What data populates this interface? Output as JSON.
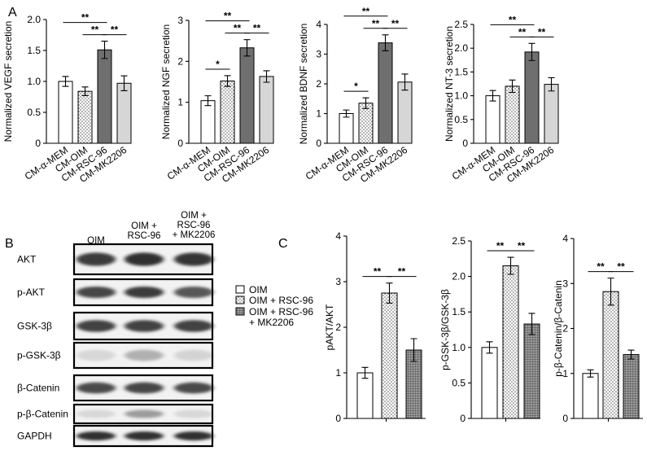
{
  "panel_labels": {
    "a": "A",
    "b": "B",
    "c": "C"
  },
  "chart_data": [
    {
      "id": "vegf",
      "type": "bar",
      "panel": "A",
      "ylabel": "Normalized VEGF secretion",
      "categories": [
        "CM-α-MEM",
        "CM-OIM",
        "CM-RSC-96",
        "CM-MK2206"
      ],
      "values": [
        1.0,
        0.84,
        1.51,
        0.97
      ],
      "errors": [
        0.08,
        0.07,
        0.14,
        0.12
      ],
      "ylim": [
        0,
        2.0
      ],
      "yticks": [
        "0",
        "0.5",
        "1.0",
        "1.5",
        "2.0"
      ],
      "fills": [
        "white",
        "dots",
        "dark",
        "light"
      ],
      "sig": [
        {
          "from": 0,
          "to": 2,
          "label": "**"
        },
        {
          "from": 1,
          "to": 2,
          "label": "**"
        },
        {
          "from": 2,
          "to": 3,
          "label": "**"
        }
      ]
    },
    {
      "id": "ngf",
      "type": "bar",
      "panel": "A",
      "ylabel": "Normalized NGF secretion",
      "categories": [
        "CM-α-MEM",
        "CM-OIM",
        "CM-RSC-96",
        "CM-MK2206"
      ],
      "values": [
        1.04,
        1.52,
        2.33,
        1.63
      ],
      "errors": [
        0.12,
        0.13,
        0.2,
        0.14
      ],
      "ylim": [
        0,
        3
      ],
      "yticks": [
        "0",
        "1",
        "2",
        "3"
      ],
      "fills": [
        "white",
        "dots",
        "dark",
        "light"
      ],
      "sig": [
        {
          "from": 0,
          "to": 1,
          "label": "*"
        },
        {
          "from": 0,
          "to": 2,
          "label": "**"
        },
        {
          "from": 1,
          "to": 2,
          "label": "**"
        },
        {
          "from": 2,
          "to": 3,
          "label": "**"
        }
      ]
    },
    {
      "id": "bdnf",
      "type": "bar",
      "panel": "A",
      "ylabel": "Normalized BDNF secretion",
      "categories": [
        "CM-α-MEM",
        "CM-OIM",
        "CM-RSC-96",
        "CM-MK2206"
      ],
      "values": [
        1.0,
        1.35,
        3.38,
        2.06
      ],
      "errors": [
        0.12,
        0.18,
        0.27,
        0.27
      ],
      "ylim": [
        0,
        4
      ],
      "yticks": [
        "0",
        "1",
        "2",
        "3",
        "4"
      ],
      "fills": [
        "white",
        "dots",
        "dark",
        "light"
      ],
      "sig": [
        {
          "from": 0,
          "to": 1,
          "label": "*"
        },
        {
          "from": 0,
          "to": 2,
          "label": "**"
        },
        {
          "from": 1,
          "to": 2,
          "label": "**"
        },
        {
          "from": 2,
          "to": 3,
          "label": "**"
        }
      ]
    },
    {
      "id": "nt3",
      "type": "bar",
      "panel": "A",
      "ylabel": "Normalized NT-3 secretion",
      "categories": [
        "CM-α-MEM",
        "CM-OIM",
        "CM-RSC-96",
        "CM-MK2206"
      ],
      "values": [
        1.0,
        1.2,
        1.92,
        1.24
      ],
      "errors": [
        0.11,
        0.13,
        0.18,
        0.14
      ],
      "ylim": [
        0,
        2.5
      ],
      "yticks": [
        "0",
        "0.5",
        "1.0",
        "1.5",
        "2.0",
        "2.5"
      ],
      "fills": [
        "white",
        "dots",
        "dark",
        "light"
      ],
      "sig": [
        {
          "from": 0,
          "to": 2,
          "label": "**"
        },
        {
          "from": 1,
          "to": 2,
          "label": "**"
        },
        {
          "from": 2,
          "to": 3,
          "label": "**"
        }
      ]
    },
    {
      "id": "pakt",
      "type": "bar",
      "panel": "C",
      "ylabel": "pAKT/AKT",
      "categories": [
        "OIM",
        "OIM + RSC-96",
        "OIM + RSC-96 + MK2206"
      ],
      "values": [
        1.0,
        2.75,
        1.5
      ],
      "errors": [
        0.12,
        0.22,
        0.25
      ],
      "ylim": [
        0,
        4
      ],
      "yticks": [
        "0",
        "1",
        "2",
        "3",
        "4"
      ],
      "fills": [
        "white",
        "dots",
        "grid"
      ],
      "sig": [
        {
          "from": 0,
          "to": 1,
          "label": "**"
        },
        {
          "from": 1,
          "to": 2,
          "label": "**"
        }
      ]
    },
    {
      "id": "pgsk",
      "type": "bar",
      "panel": "C",
      "ylabel": "p-GSK-3β/GSK-3β",
      "categories": [
        "OIM",
        "OIM + RSC-96",
        "OIM + RSC-96 + MK2206"
      ],
      "values": [
        1.0,
        2.15,
        1.33
      ],
      "errors": [
        0.08,
        0.12,
        0.15
      ],
      "ylim": [
        0,
        2.5
      ],
      "yticks": [
        "0",
        "0.5",
        "1.0",
        "1.5",
        "2.0",
        "2.5"
      ],
      "fills": [
        "white",
        "dots",
        "grid"
      ],
      "sig": [
        {
          "from": 0,
          "to": 1,
          "label": "**"
        },
        {
          "from": 1,
          "to": 2,
          "label": "**"
        }
      ]
    },
    {
      "id": "pbcat",
      "type": "bar",
      "panel": "C",
      "ylabel": "p-β-Catenin/β-Catenin",
      "categories": [
        "OIM",
        "OIM + RSC-96",
        "OIM + RSC-96 + MK2206"
      ],
      "values": [
        1.0,
        2.82,
        1.42
      ],
      "errors": [
        0.08,
        0.3,
        0.1
      ],
      "ylim": [
        0,
        4
      ],
      "yticks": [
        "0",
        "1",
        "2",
        "3",
        "4"
      ],
      "fills": [
        "white",
        "dots",
        "grid"
      ],
      "sig": [
        {
          "from": 0,
          "to": 1,
          "label": "**"
        },
        {
          "from": 1,
          "to": 2,
          "label": "**"
        }
      ]
    }
  ],
  "legend": {
    "items": [
      {
        "label": "OIM",
        "fill": "white"
      },
      {
        "label": "OIM + RSC-96",
        "fill": "dots"
      },
      {
        "label": "OIM + RSC-96",
        "label2": "+ MK2206",
        "fill": "grid"
      }
    ]
  },
  "blot": {
    "columns": [
      {
        "lines": [
          "OIM"
        ]
      },
      {
        "lines": [
          "OIM +",
          "RSC-96"
        ]
      },
      {
        "lines": [
          "OIM +",
          "RSC-96",
          "+ MK2206"
        ]
      }
    ],
    "rows": [
      {
        "label": "AKT",
        "intensities": [
          0.85,
          0.9,
          0.88
        ]
      },
      {
        "label": "p-AKT",
        "intensities": [
          0.8,
          0.85,
          0.72
        ]
      },
      {
        "label": "GSK-3β",
        "intensities": [
          0.82,
          0.82,
          0.82
        ]
      },
      {
        "label": "p-GSK-3β",
        "intensities": [
          0.12,
          0.3,
          0.14
        ]
      },
      {
        "label": "β-Catenin",
        "intensities": [
          0.78,
          0.8,
          0.78
        ]
      },
      {
        "label": "p-β-Catenin",
        "intensities": [
          0.12,
          0.4,
          0.12
        ]
      },
      {
        "label": "GAPDH",
        "intensities": [
          0.9,
          0.9,
          0.9
        ]
      }
    ]
  },
  "colors": {
    "axis": "#000000",
    "dark_bar": "#6f6f6f",
    "light_bar": "#d6d6d6",
    "dots": "#555555",
    "grid_bar": "#6a6a6a",
    "blot_bg": "#f2f2f2",
    "band": "#1a1a1a"
  }
}
